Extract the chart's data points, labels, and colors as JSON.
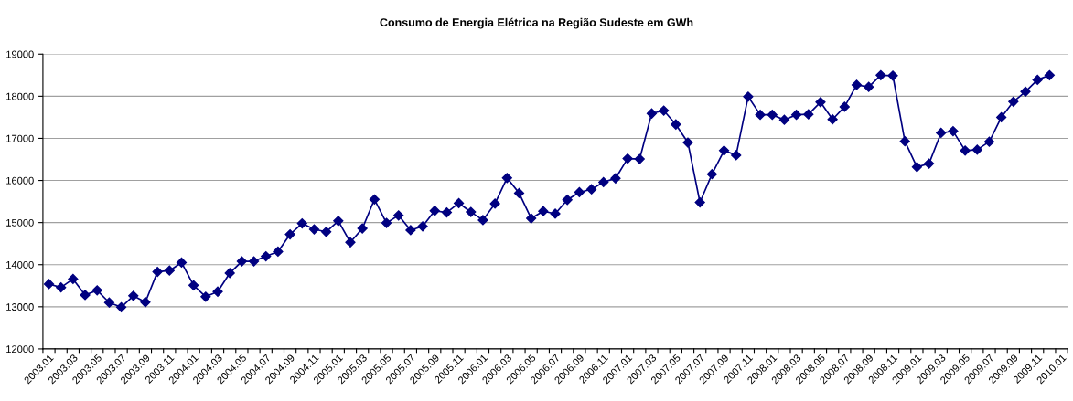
{
  "chart_data": {
    "type": "line",
    "title": "Consumo de Energia Elétrica na Região Sudeste em GWh",
    "categories": [
      "2003.01",
      null,
      "2003.03",
      null,
      "2003.05",
      null,
      "2003.07",
      null,
      "2003.09",
      null,
      "2003.11",
      null,
      "2004.01",
      null,
      "2004.03",
      null,
      "2004.05",
      null,
      "2004.07",
      null,
      "2004.09",
      null,
      "2004.11",
      null,
      "2005.01",
      null,
      "2005.03",
      null,
      "2005.05",
      null,
      "2005.07",
      null,
      "2005.09",
      null,
      "2005.11",
      null,
      "2006.01",
      null,
      "2006.03",
      null,
      "2006.05",
      null,
      "2006.07",
      null,
      "2006.09",
      null,
      "2006.11",
      null,
      "2007.01",
      null,
      "2007.03",
      null,
      "2007.05",
      null,
      "2007.07",
      null,
      "2007.09",
      null,
      "2007.11",
      null,
      "2008.01",
      null,
      "2008.03",
      null,
      "2008.05",
      null,
      "2008.07",
      null,
      "2008.09",
      null,
      "2008.11",
      null,
      "2009.01",
      null,
      "2009.03",
      null,
      "2009.05",
      null,
      "2009.07",
      null,
      "2009.09",
      null,
      "2009.11",
      null,
      "2010.01"
    ],
    "series": [
      {
        "color": "#000080",
        "values": [
          13540,
          13460,
          13660,
          13280,
          13390,
          13100,
          12990,
          13260,
          13110,
          13830,
          13860,
          14050,
          13510,
          13240,
          13360,
          13800,
          14080,
          14080,
          14200,
          14310,
          14720,
          14980,
          14840,
          14780,
          15040,
          14530,
          14860,
          15550,
          14990,
          15170,
          14820,
          14910,
          15280,
          15240,
          15460,
          15250,
          15060,
          15450,
          16060,
          15700,
          15100,
          15270,
          15210,
          15540,
          15720,
          15790,
          15960,
          16050,
          16520,
          16510,
          17590,
          17660,
          17330,
          16900,
          15480,
          16150,
          16710,
          16600,
          17990,
          17560,
          17560,
          17440,
          17560,
          17570,
          17860,
          17450,
          17750,
          18270,
          18220,
          18500,
          18490,
          16930,
          16320,
          16400,
          17130,
          17170,
          16710,
          16730,
          16920,
          17500,
          17870,
          18110,
          18390,
          18500,
          null
        ]
      }
    ],
    "ylim": [
      12000,
      19000
    ],
    "yticks": [
      12000,
      13000,
      14000,
      15000,
      16000,
      17000,
      18000,
      19000
    ],
    "grid": "y",
    "marker": "diamond",
    "line_style": "solid",
    "legend": false
  }
}
